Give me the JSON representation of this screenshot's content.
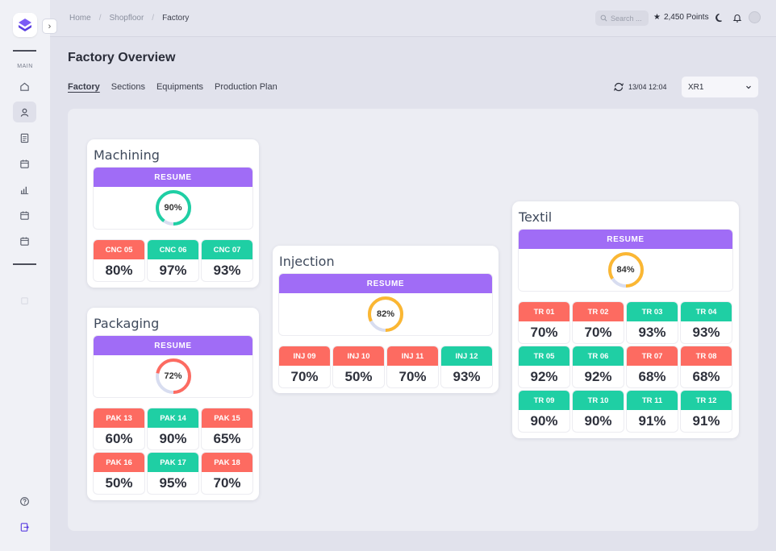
{
  "breadcrumb": [
    "Home",
    "Shopfloor",
    "Factory"
  ],
  "header": {
    "search_placeholder": "Search ...",
    "points": "2,450 Points"
  },
  "sidebar": {
    "section_label": "MAIN"
  },
  "page": {
    "title": "Factory Overview",
    "tabs": [
      "Factory",
      "Sections",
      "Equipments",
      "Production Plan"
    ],
    "refresh_time": "13/04 12:04",
    "selector_value": "XR1"
  },
  "colors": {
    "red": "#fd6b61",
    "green": "#1fcfa4",
    "purple": "#a06cf6",
    "orange": "#fbb733",
    "teal_gauge": "#1fcfa4"
  },
  "resume_label": "RESUME",
  "sections": [
    {
      "name": "Machining",
      "resume": "90%",
      "resume_value": 90,
      "gauge_color": "#1fcfa4",
      "machines": [
        {
          "id": "CNC 05",
          "value": "80%",
          "status": "red"
        },
        {
          "id": "CNC 06",
          "value": "97%",
          "status": "green"
        },
        {
          "id": "CNC 07",
          "value": "93%",
          "status": "green"
        }
      ]
    },
    {
      "name": "Packaging",
      "resume": "72%",
      "resume_value": 72,
      "gauge_color": "#fd6b61",
      "machines": [
        {
          "id": "PAK 13",
          "value": "60%",
          "status": "red"
        },
        {
          "id": "PAK 14",
          "value": "90%",
          "status": "green"
        },
        {
          "id": "PAK 15",
          "value": "65%",
          "status": "red"
        },
        {
          "id": "PAK 16",
          "value": "50%",
          "status": "red"
        },
        {
          "id": "PAK 17",
          "value": "95%",
          "status": "green"
        },
        {
          "id": "PAK 18",
          "value": "70%",
          "status": "red"
        }
      ]
    },
    {
      "name": "Injection",
      "resume": "82%",
      "resume_value": 82,
      "gauge_color": "#fbb733",
      "machines": [
        {
          "id": "INJ 09",
          "value": "70%",
          "status": "red"
        },
        {
          "id": "INJ 10",
          "value": "50%",
          "status": "red"
        },
        {
          "id": "INJ 11",
          "value": "70%",
          "status": "red"
        },
        {
          "id": "INJ 12",
          "value": "93%",
          "status": "green"
        }
      ]
    },
    {
      "name": "Textil",
      "resume": "84%",
      "resume_value": 84,
      "gauge_color": "#fbb733",
      "machines": [
        {
          "id": "TR 01",
          "value": "70%",
          "status": "red"
        },
        {
          "id": "TR 02",
          "value": "70%",
          "status": "red"
        },
        {
          "id": "TR 03",
          "value": "93%",
          "status": "green"
        },
        {
          "id": "TR 04",
          "value": "93%",
          "status": "green"
        },
        {
          "id": "TR 05",
          "value": "92%",
          "status": "green"
        },
        {
          "id": "TR 06",
          "value": "92%",
          "status": "green"
        },
        {
          "id": "TR 07",
          "value": "68%",
          "status": "red"
        },
        {
          "id": "TR 08",
          "value": "68%",
          "status": "red"
        },
        {
          "id": "TR 09",
          "value": "90%",
          "status": "green"
        },
        {
          "id": "TR 10",
          "value": "90%",
          "status": "green"
        },
        {
          "id": "TR 11",
          "value": "91%",
          "status": "green"
        },
        {
          "id": "TR 12",
          "value": "91%",
          "status": "green"
        }
      ]
    }
  ]
}
